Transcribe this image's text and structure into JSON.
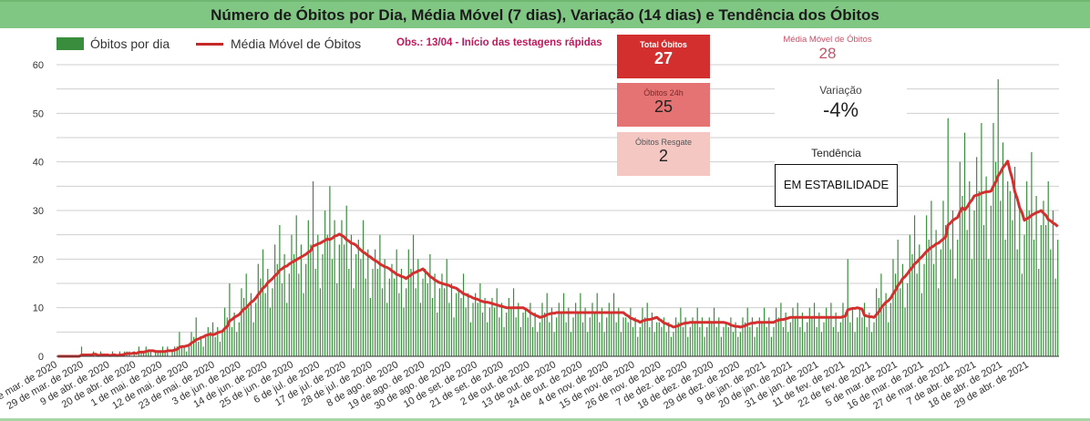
{
  "header": {
    "title": "Número de Óbitos por Dia, Média Móvel (7 dias), Variação (14 dias) e Tendência dos Óbitos"
  },
  "legend": {
    "bars": "Óbitos por dia",
    "line": "Média Móvel de Óbitos"
  },
  "note": "Obs.: 13/04 - Início das testagens rápidas",
  "cards": {
    "total": {
      "label": "Total Óbitos",
      "value": "27"
    },
    "h24": {
      "label": "Óbitos 24h",
      "value": "25"
    },
    "resgate": {
      "label": "Óbitos Resgate",
      "value": "2"
    }
  },
  "kpis": {
    "moving_avg": {
      "label": "Média Móvel de Óbitos",
      "value": "28"
    },
    "variation": {
      "label": "Variação",
      "value": "-4%"
    },
    "trend": {
      "label": "Tendência",
      "value": "EM ESTABILIDADE"
    }
  },
  "colors": {
    "bars": "#388e3c",
    "line": "#d32f2f",
    "grid": "#cfcfcf"
  },
  "chart_data": {
    "type": "bar+line",
    "title": "Número de Óbitos por Dia, Média Móvel (7 dias), Variação (14 dias) e Tendência dos Óbitos",
    "start_date": "18 de mar. de 2020",
    "ylim": [
      0,
      60
    ],
    "yticks": [
      "0",
      "10",
      "20",
      "30",
      "40",
      "50",
      "60"
    ],
    "xtick_every_days": 11,
    "xticks": [
      "18 de mar. de 2020",
      "29 de mar. de 2020",
      "9 de abr. de 2020",
      "20 de abr. de 2020",
      "1 de mai. de 2020",
      "12 de mai. de 2020",
      "23 de mai. de 2020",
      "3 de jun. de 2020",
      "14 de jun. de 2020",
      "25 de jun. de 2020",
      "6 de jul. de 2020",
      "17 de jul. de 2020",
      "28 de jul. de 2020",
      "8 de ago. de 2020",
      "19 de ago. de 2020",
      "30 de ago. de 2020",
      "10 de set. de 2020",
      "21 de set. de 2020",
      "2 de out. de 2020",
      "13 de out. de 2020",
      "24 de out. de 2020",
      "4 de nov. de 2020",
      "15 de nov. de 2020",
      "26 de nov. de 2020",
      "7 de dez. de 2020",
      "18 de dez. de 2020",
      "29 de dez. de 2020",
      "9 de jan. de 2021",
      "20 de jan. de 2021",
      "31 de jan. de 2021",
      "11 de fev. de 2021",
      "22 de fev. de 2021",
      "5 de mar. de 2021",
      "16 de mar. de 2021",
      "27 de mar. de 2021",
      "7 de abr. de 2021",
      "18 de abr. de 2021",
      "29 de abr. de 2021"
    ],
    "series": [
      {
        "name": "Óbitos por dia",
        "type": "bar",
        "values": [
          0,
          0,
          0,
          0,
          0,
          0,
          0,
          0,
          0,
          0,
          2,
          0,
          0,
          0,
          0,
          1,
          0,
          0,
          1,
          0,
          0,
          0,
          0,
          1,
          0,
          0,
          1,
          0,
          1,
          1,
          1,
          0,
          1,
          0,
          2,
          1,
          1,
          2,
          1,
          1,
          0,
          1,
          1,
          1,
          2,
          1,
          2,
          0,
          1,
          2,
          2,
          5,
          2,
          2,
          1,
          2,
          5,
          4,
          8,
          3,
          4,
          2,
          4,
          6,
          5,
          7,
          4,
          6,
          3,
          5,
          10,
          8,
          15,
          6,
          9,
          5,
          7,
          14,
          12,
          17,
          10,
          13,
          7,
          11,
          19,
          16,
          22,
          13,
          18,
          10,
          14,
          23,
          19,
          27,
          15,
          21,
          11,
          17,
          25,
          21,
          29,
          17,
          23,
          13,
          19,
          28,
          23,
          36,
          18,
          25,
          14,
          21,
          30,
          25,
          35,
          20,
          28,
          15,
          23,
          28,
          23,
          31,
          18,
          25,
          14,
          21,
          24,
          20,
          28,
          16,
          22,
          12,
          18,
          22,
          18,
          25,
          14,
          20,
          11,
          16,
          19,
          16,
          22,
          13,
          18,
          10,
          14,
          22,
          18,
          25,
          14,
          20,
          11,
          16,
          18,
          15,
          21,
          12,
          17,
          9,
          14,
          17,
          14,
          20,
          11,
          15,
          8,
          13,
          14,
          12,
          17,
          10,
          13,
          7,
          11,
          13,
          11,
          15,
          9,
          12,
          7,
          10,
          12,
          10,
          14,
          8,
          11,
          6,
          9,
          12,
          10,
          14,
          8,
          11,
          6,
          9,
          10,
          8,
          11,
          6,
          9,
          5,
          7,
          11,
          9,
          13,
          7,
          10,
          5,
          8,
          11,
          9,
          13,
          7,
          10,
          5,
          8,
          11,
          9,
          13,
          7,
          10,
          5,
          8,
          11,
          9,
          13,
          7,
          10,
          5,
          8,
          11,
          9,
          13,
          7,
          10,
          5,
          8,
          8,
          7,
          10,
          6,
          8,
          4,
          6,
          10,
          8,
          11,
          6,
          9,
          5,
          7,
          7,
          6,
          8,
          5,
          7,
          4,
          5,
          8,
          7,
          10,
          6,
          8,
          4,
          6,
          8,
          7,
          10,
          6,
          8,
          4,
          6,
          8,
          7,
          10,
          6,
          8,
          4,
          6,
          7,
          6,
          8,
          5,
          7,
          4,
          5,
          8,
          7,
          10,
          6,
          8,
          4,
          6,
          8,
          7,
          10,
          6,
          8,
          4,
          6,
          10,
          8,
          11,
          6,
          9,
          5,
          7,
          10,
          8,
          11,
          6,
          9,
          5,
          7,
          10,
          8,
          11,
          6,
          9,
          5,
          7,
          10,
          8,
          11,
          6,
          9,
          5,
          7,
          11,
          9,
          20,
          7,
          10,
          5,
          8,
          10,
          8,
          11,
          6,
          9,
          5,
          7,
          14,
          12,
          17,
          10,
          13,
          7,
          11,
          20,
          17,
          24,
          14,
          19,
          10,
          15,
          25,
          21,
          29,
          17,
          23,
          13,
          19,
          29,
          24,
          32,
          19,
          26,
          14,
          22,
          32,
          27,
          49,
          22,
          30,
          16,
          24,
          40,
          33,
          46,
          26,
          36,
          20,
          30,
          41,
          34,
          48,
          27,
          37,
          20,
          31,
          48,
          40,
          57,
          32,
          44,
          24,
          36,
          34,
          28,
          39,
          22,
          31,
          17,
          25,
          36,
          30,
          42,
          24,
          33,
          18,
          27,
          32,
          27,
          36,
          22,
          30,
          16,
          24
        ]
      },
      {
        "name": "Média Móvel de Óbitos",
        "type": "line",
        "window_days": 7
      }
    ],
    "legend_position": "top-left",
    "grid": true
  }
}
